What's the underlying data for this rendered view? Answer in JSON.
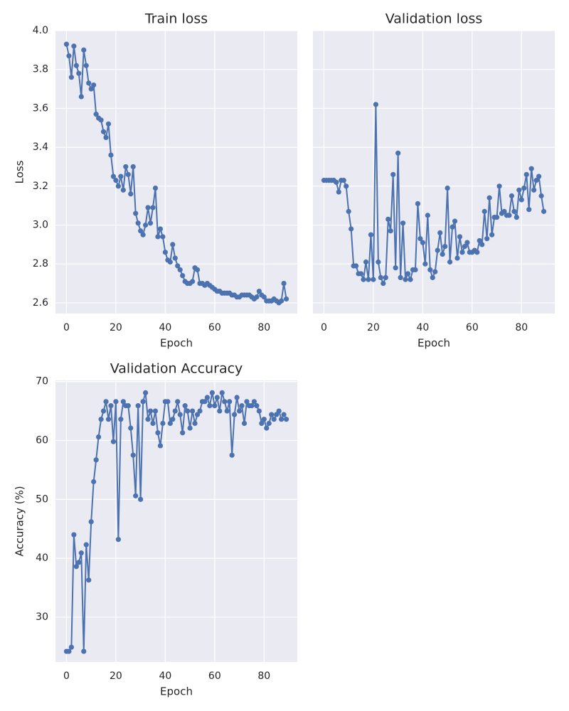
{
  "chart_data": [
    {
      "type": "line",
      "title": "Train loss",
      "xlabel": "Epoch",
      "ylabel": "Loss",
      "grid": true,
      "x": [
        0,
        1,
        2,
        3,
        4,
        5,
        6,
        7,
        8,
        9,
        10,
        11,
        12,
        13,
        14,
        15,
        16,
        17,
        18,
        19,
        20,
        21,
        22,
        23,
        24,
        25,
        26,
        27,
        28,
        29,
        30,
        31,
        32,
        33,
        34,
        35,
        36,
        37,
        38,
        39,
        40,
        41,
        42,
        43,
        44,
        45,
        46,
        47,
        48,
        49,
        50,
        51,
        52,
        53,
        54,
        55,
        56,
        57,
        58,
        59,
        60,
        61,
        62,
        63,
        64,
        65,
        66,
        67,
        68,
        69,
        70,
        71,
        72,
        73,
        74,
        75,
        76,
        77,
        78,
        79,
        80,
        81,
        82,
        83,
        84,
        85,
        86,
        87,
        88,
        89
      ],
      "series": [
        {
          "color": "#4c72b0",
          "values": [
            3.93,
            3.87,
            3.76,
            3.92,
            3.82,
            3.78,
            3.66,
            3.9,
            3.82,
            3.73,
            3.7,
            3.72,
            3.57,
            3.55,
            3.54,
            3.48,
            3.45,
            3.52,
            3.36,
            3.25,
            3.23,
            3.2,
            3.25,
            3.18,
            3.3,
            3.26,
            3.16,
            3.3,
            3.06,
            3.01,
            2.97,
            2.95,
            3.0,
            3.09,
            3.01,
            3.09,
            3.19,
            2.94,
            2.98,
            2.94,
            2.86,
            2.82,
            2.81,
            2.9,
            2.83,
            2.79,
            2.77,
            2.74,
            2.71,
            2.7,
            2.7,
            2.71,
            2.78,
            2.77,
            2.7,
            2.7,
            2.69,
            2.7,
            2.69,
            2.68,
            2.67,
            2.66,
            2.66,
            2.65,
            2.65,
            2.65,
            2.65,
            2.64,
            2.64,
            2.63,
            2.63,
            2.64,
            2.64,
            2.64,
            2.64,
            2.63,
            2.62,
            2.63,
            2.66,
            2.64,
            2.63,
            2.61,
            2.61,
            2.61,
            2.62,
            2.61,
            2.6,
            2.61,
            2.7,
            2.62
          ]
        }
      ],
      "xlim": [
        -4.45,
        93.45
      ],
      "ylim": [
        2.545,
        4.0
      ],
      "xticks": [
        0,
        20,
        40,
        60,
        80
      ],
      "yticks": [
        2.6,
        2.8,
        {
          "value": 3,
          "label": "3.0"
        },
        3.2,
        3.4,
        3.6,
        3.8,
        {
          "value": 4,
          "label": "4.0"
        }
      ]
    },
    {
      "type": "line",
      "title": "Validation loss",
      "xlabel": "Epoch",
      "grid": true,
      "sharey": true,
      "x": [
        0,
        1,
        2,
        3,
        4,
        5,
        6,
        7,
        8,
        9,
        10,
        11,
        12,
        13,
        14,
        15,
        16,
        17,
        18,
        19,
        20,
        21,
        22,
        23,
        24,
        25,
        26,
        27,
        28,
        29,
        30,
        31,
        32,
        33,
        34,
        35,
        36,
        37,
        38,
        39,
        40,
        41,
        42,
        43,
        44,
        45,
        46,
        47,
        48,
        49,
        50,
        51,
        52,
        53,
        54,
        55,
        56,
        57,
        58,
        59,
        60,
        61,
        62,
        63,
        64,
        65,
        66,
        67,
        68,
        69,
        70,
        71,
        72,
        73,
        74,
        75,
        76,
        77,
        78,
        79,
        80,
        81,
        82,
        83,
        84,
        85,
        86,
        87,
        88,
        89
      ],
      "series": [
        {
          "color": "#4c72b0",
          "values": [
            3.23,
            3.23,
            3.23,
            3.23,
            3.23,
            3.22,
            3.17,
            3.23,
            3.23,
            3.2,
            3.07,
            2.98,
            2.79,
            2.79,
            2.75,
            2.75,
            2.72,
            2.81,
            2.72,
            2.95,
            2.72,
            3.62,
            2.81,
            2.73,
            2.7,
            2.73,
            3.03,
            2.97,
            3.26,
            2.78,
            3.37,
            2.73,
            3.01,
            2.72,
            2.75,
            2.72,
            2.77,
            2.77,
            3.11,
            2.93,
            2.91,
            2.8,
            3.05,
            2.77,
            2.73,
            2.76,
            2.87,
            2.96,
            2.85,
            2.89,
            3.19,
            2.81,
            2.99,
            3.02,
            2.83,
            2.94,
            2.86,
            2.89,
            2.91,
            2.86,
            2.86,
            2.87,
            2.86,
            2.92,
            2.9,
            3.07,
            2.93,
            3.14,
            2.95,
            3.04,
            3.04,
            3.2,
            3.06,
            3.07,
            3.05,
            3.05,
            3.15,
            3.07,
            3.04,
            3.18,
            3.13,
            3.19,
            3.26,
            3.08,
            3.29,
            3.18,
            3.23,
            3.25,
            3.15,
            3.07
          ]
        }
      ],
      "xlim": [
        -4.45,
        93.45
      ],
      "ylim": [
        2.545,
        4.0
      ],
      "xticks": [
        0,
        20,
        40,
        60,
        80
      ],
      "yticks": [
        2.6,
        2.8,
        {
          "value": 3,
          "label": "3.0"
        },
        3.2,
        3.4,
        3.6,
        3.8,
        {
          "value": 4,
          "label": "4.0"
        }
      ]
    },
    {
      "type": "line",
      "title": "Validation Accuracy",
      "xlabel": "Epoch",
      "ylabel": "Accuracy (%)",
      "grid": true,
      "x": [
        0,
        1,
        2,
        3,
        4,
        5,
        6,
        7,
        8,
        9,
        10,
        11,
        12,
        13,
        14,
        15,
        16,
        17,
        18,
        19,
        20,
        21,
        22,
        23,
        24,
        25,
        26,
        27,
        28,
        29,
        30,
        31,
        32,
        33,
        34,
        35,
        36,
        37,
        38,
        39,
        40,
        41,
        42,
        43,
        44,
        45,
        46,
        47,
        48,
        49,
        50,
        51,
        52,
        53,
        54,
        55,
        56,
        57,
        58,
        59,
        60,
        61,
        62,
        63,
        64,
        65,
        66,
        67,
        68,
        69,
        70,
        71,
        72,
        73,
        74,
        75,
        76,
        77,
        78,
        79,
        80,
        81,
        82,
        83,
        84,
        85,
        86,
        87,
        88,
        89
      ],
      "series": [
        {
          "color": "#4c72b0",
          "values": [
            24.2,
            24.2,
            24.9,
            44.0,
            38.6,
            39.3,
            40.9,
            24.2,
            42.3,
            36.3,
            46.2,
            53.0,
            56.7,
            60.6,
            63.6,
            65.0,
            66.6,
            63.6,
            65.9,
            59.8,
            66.6,
            43.2,
            63.6,
            66.6,
            65.9,
            65.9,
            62.1,
            57.5,
            50.6,
            65.9,
            50.0,
            66.6,
            68.1,
            63.6,
            65.0,
            62.9,
            65.0,
            61.3,
            59.1,
            62.9,
            66.6,
            66.6,
            62.9,
            63.6,
            65.0,
            66.6,
            64.4,
            61.3,
            65.9,
            65.0,
            62.1,
            65.0,
            62.9,
            64.4,
            65.0,
            66.6,
            66.6,
            67.3,
            65.9,
            68.1,
            65.9,
            67.3,
            65.0,
            68.1,
            66.6,
            65.0,
            66.6,
            57.5,
            64.4,
            67.3,
            65.0,
            65.9,
            62.9,
            66.6,
            65.9,
            65.9,
            66.6,
            65.9,
            65.0,
            62.9,
            63.6,
            62.1,
            62.9,
            64.4,
            63.6,
            64.4,
            65.0,
            63.6,
            64.4,
            63.6
          ]
        }
      ],
      "xlim": [
        -4.45,
        93.45
      ],
      "ylim": [
        22.4,
        70.2
      ],
      "xticks": [
        0,
        20,
        40,
        60,
        80
      ],
      "yticks": [
        30,
        40,
        50,
        60,
        70
      ]
    }
  ]
}
